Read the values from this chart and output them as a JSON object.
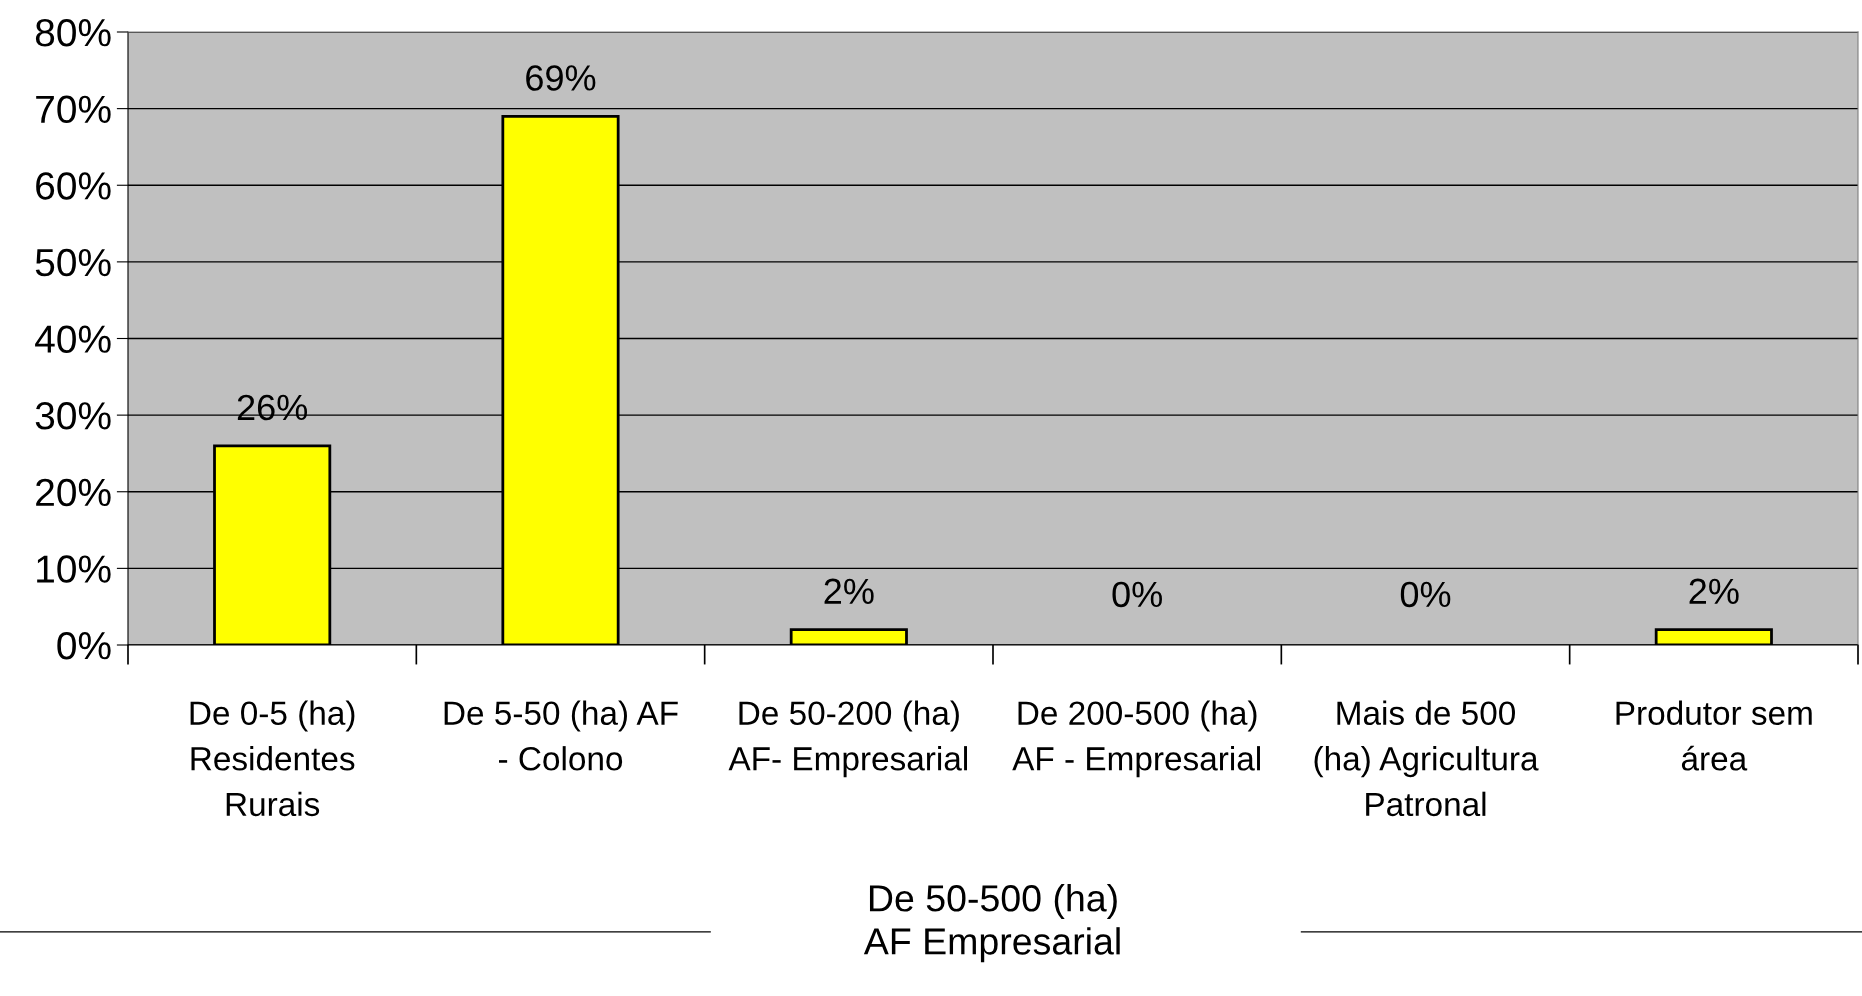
{
  "chart_data": {
    "type": "bar",
    "categories": [
      "De 0-5 (ha)\nResidentes\nRurais",
      "De 5-50 (ha) AF\n- Colono",
      "De 50-200 (ha)\nAF- Empresarial",
      "De 200-500 (ha)\nAF - Empresarial",
      "Mais de 500\n(ha) Agricultura\nPatronal",
      "Produtor sem\nárea"
    ],
    "values": [
      26,
      69,
      2,
      0,
      0,
      2
    ],
    "value_labels": [
      "26%",
      "69%",
      "2%",
      "0%",
      "0%",
      "2%"
    ],
    "color": "#ffff00",
    "ylim": [
      0,
      80
    ],
    "yticks": [
      {
        "value": 0,
        "label": "0%"
      },
      {
        "value": 10,
        "label": "10%"
      },
      {
        "value": 20,
        "label": "20%"
      },
      {
        "value": 30,
        "label": "30%"
      },
      {
        "value": 40,
        "label": "40%"
      },
      {
        "value": 50,
        "label": "50%"
      },
      {
        "value": 60,
        "label": "60%"
      },
      {
        "value": 70,
        "label": "70%"
      },
      {
        "value": 80,
        "label": "80%"
      }
    ],
    "grid": "y",
    "annotations": [
      "De 50-500 (ha)\nAF Empresarial"
    ]
  }
}
